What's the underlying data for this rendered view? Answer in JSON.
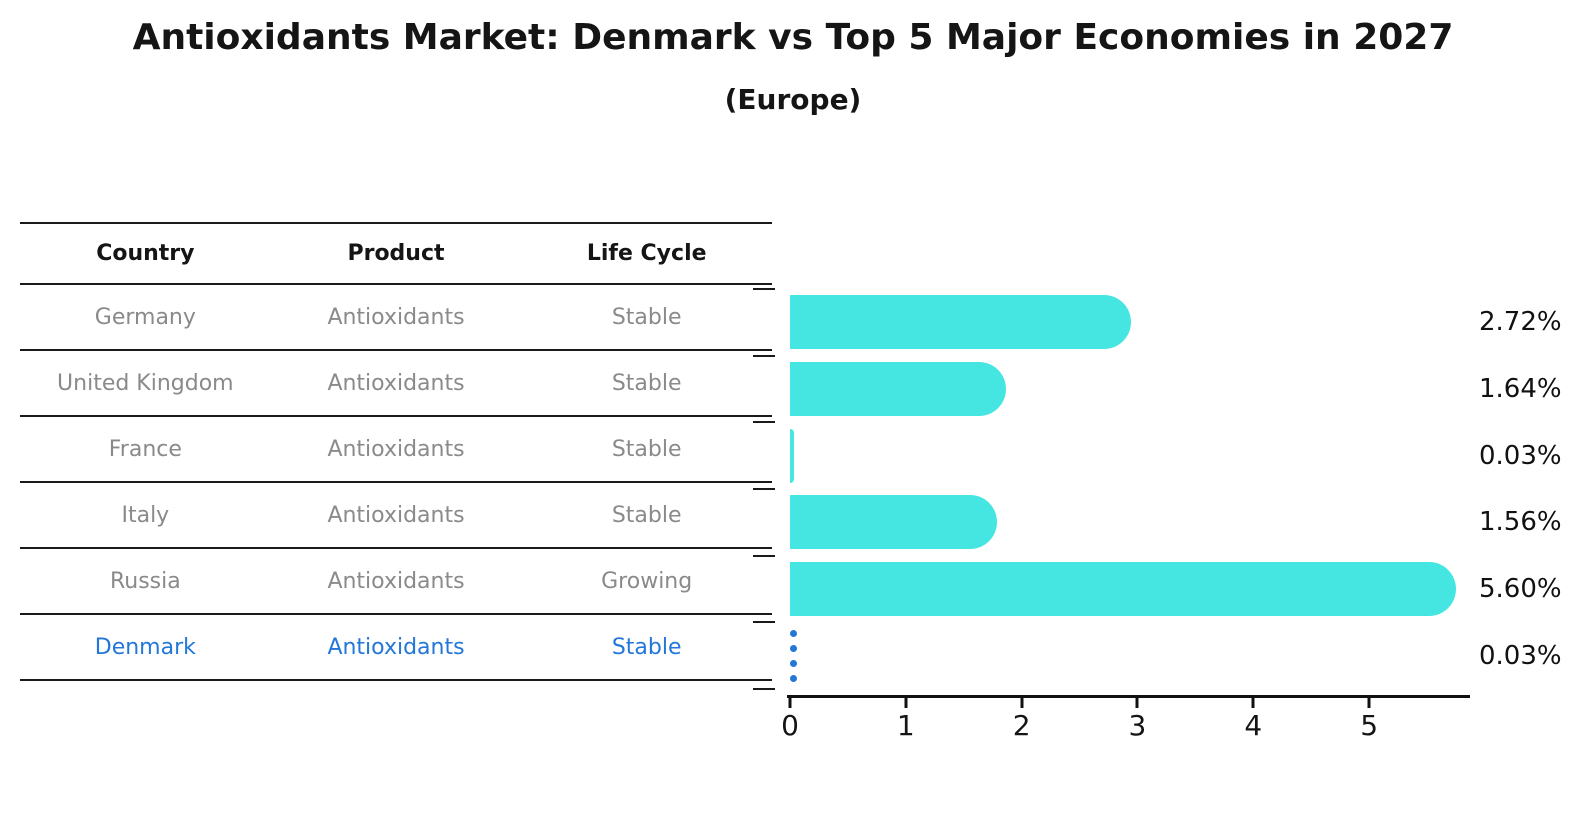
{
  "title": "Antioxidants Market: Denmark vs Top 5 Major Economies in 2027",
  "subtitle": "(Europe)",
  "table": {
    "headers": [
      "Country",
      "Product",
      "Life Cycle"
    ],
    "rows": [
      {
        "country": "Germany",
        "product": "Antioxidants",
        "life_cycle": "Stable"
      },
      {
        "country": "United Kingdom",
        "product": "Antioxidants",
        "life_cycle": "Stable"
      },
      {
        "country": "France",
        "product": "Antioxidants",
        "life_cycle": "Stable"
      },
      {
        "country": "Italy",
        "product": "Antioxidants",
        "life_cycle": "Stable"
      },
      {
        "country": "Russia",
        "product": "Antioxidants",
        "life_cycle": "Growing"
      },
      {
        "country": "Denmark",
        "product": "Antioxidants",
        "life_cycle": "Stable"
      }
    ],
    "highlighted_row": "Denmark"
  },
  "chart_data": {
    "type": "bar",
    "orientation": "horizontal",
    "title": "Antioxidants Market: Denmark vs Top 5 Major Economies in 2027",
    "subtitle": "(Europe)",
    "categories": [
      "Germany",
      "United Kingdom",
      "France",
      "Italy",
      "Russia",
      "Denmark"
    ],
    "values": [
      2.72,
      1.64,
      0.03,
      1.56,
      5.6,
      0.03
    ],
    "value_labels": [
      "2.72%",
      "1.64%",
      "0.03%",
      "1.56%",
      "5.60%",
      "0.03%"
    ],
    "x_ticks": [
      0,
      1,
      2,
      3,
      4,
      5
    ],
    "xlim": [
      0,
      5.75
    ],
    "grid": false,
    "legend": false,
    "bar_color": "#45e6e2",
    "highlight_index": 5,
    "highlight_color": "#2277d8"
  },
  "colors": {
    "bar": "#45e6e2",
    "highlight": "#2277d8",
    "table_text": "#8a8a8a",
    "header_text": "#151515",
    "axis": "#111111"
  }
}
